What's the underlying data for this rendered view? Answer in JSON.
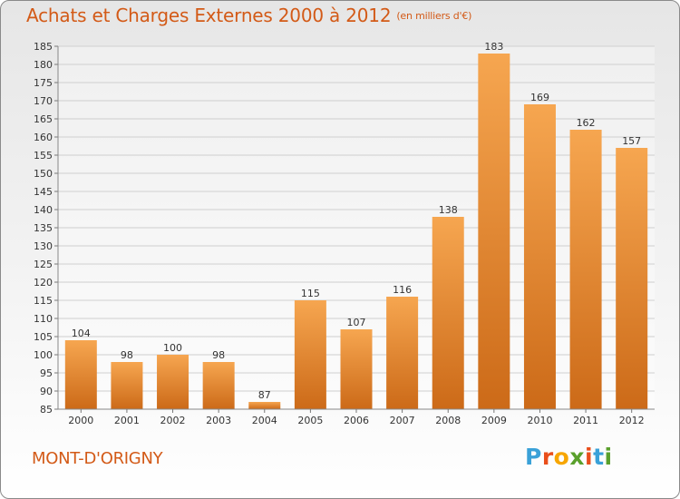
{
  "header": {
    "title": "Achats et Charges Externes 2000 à 2012",
    "unit": "(en milliers d'€)"
  },
  "footer": {
    "commune": "MONT-D'ORIGNY",
    "logo_letters": [
      "P",
      "r",
      "o",
      "x",
      "i",
      "t",
      "i"
    ],
    "logo_colors": [
      "#3aa1d8",
      "#e94e1b",
      "#f7a600",
      "#5aa02c",
      "#e94e1b",
      "#3aa1d8",
      "#5aa02c"
    ]
  },
  "colors": {
    "accent": "#d35a17",
    "bar_top": "#f6a650",
    "bar_bottom": "#cc6a18",
    "grid": "#cfcfcf"
  },
  "chart_data": {
    "type": "bar",
    "categories": [
      "2000",
      "2001",
      "2002",
      "2003",
      "2004",
      "2005",
      "2006",
      "2007",
      "2008",
      "2009",
      "2010",
      "2011",
      "2012"
    ],
    "values": [
      104,
      98,
      100,
      98,
      87,
      115,
      107,
      116,
      138,
      183,
      169,
      162,
      157
    ],
    "ylim": [
      85,
      185
    ],
    "yticks": [
      85,
      90,
      95,
      100,
      105,
      110,
      115,
      120,
      125,
      130,
      135,
      140,
      145,
      150,
      155,
      160,
      165,
      170,
      175,
      180,
      185
    ],
    "grid": true,
    "data_labels": true
  }
}
